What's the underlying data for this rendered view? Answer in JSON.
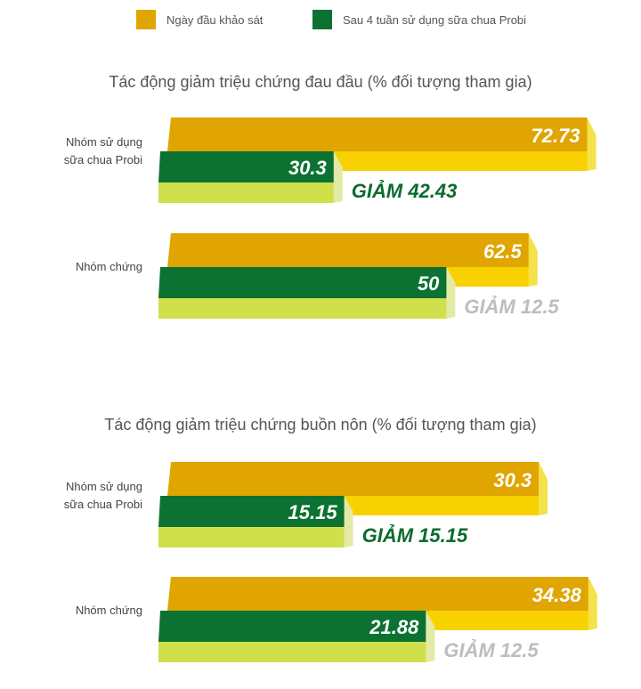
{
  "legend": [
    {
      "label": "Ngày đầu khảo sát",
      "color": "#E0A500"
    },
    {
      "label": "Sau 4 tuần sử dụng sữa chua Probi",
      "color": "#0B7232"
    }
  ],
  "chart_data": [
    {
      "type": "bar",
      "title": "Tác động giảm triệu chứng đau đầu (% đối tượng tham gia)",
      "xlim": [
        0,
        70
      ],
      "categories": [
        [
          "Nhóm sử dụng",
          "sữa chua Probi"
        ],
        [
          "Nhóm chứng"
        ]
      ],
      "series": [
        {
          "name": "Ngày đầu khảo sát",
          "values": [
            72.73,
            62.5
          ]
        },
        {
          "name": "Sau 4 tuần sử dụng sữa chua Probi",
          "values": [
            30.3,
            50
          ]
        }
      ],
      "annotations": [
        "GIẢM 42.43",
        "GIẢM 12.5"
      ],
      "value_labels": [
        [
          "72.73",
          "62.5"
        ],
        [
          "30.3",
          "50"
        ]
      ]
    },
    {
      "type": "bar",
      "title": "Tác động giảm triệu chứng buồn nôn (% đối tượng tham gia)",
      "xlim": [
        0,
        33
      ],
      "categories": [
        [
          "Nhóm sử dụng",
          "sữa chua Probi"
        ],
        [
          "Nhóm chứng"
        ]
      ],
      "series": [
        {
          "name": "Ngày đầu khảo sát",
          "values": [
            30.3,
            34.38
          ]
        },
        {
          "name": "Sau 4 tuần sử dụng sữa chua Probi",
          "values": [
            15.15,
            21.88
          ]
        }
      ],
      "annotations": [
        "GIẢM 15.15",
        "GIẢM 12.5"
      ],
      "value_labels": [
        [
          "30.3",
          "34.38"
        ],
        [
          "15.15",
          "21.88"
        ]
      ]
    }
  ],
  "colors": {
    "orange_top": "#E0A500",
    "yellow_front": "#F7D200",
    "yellow_side": "#F3E24A",
    "green_top": "#0B7232",
    "lime_front": "#CFE04A",
    "lime_side": "#E3EAA6",
    "reduction_probi": "#0B6B2E",
    "reduction_control": "#BDBDBD"
  }
}
